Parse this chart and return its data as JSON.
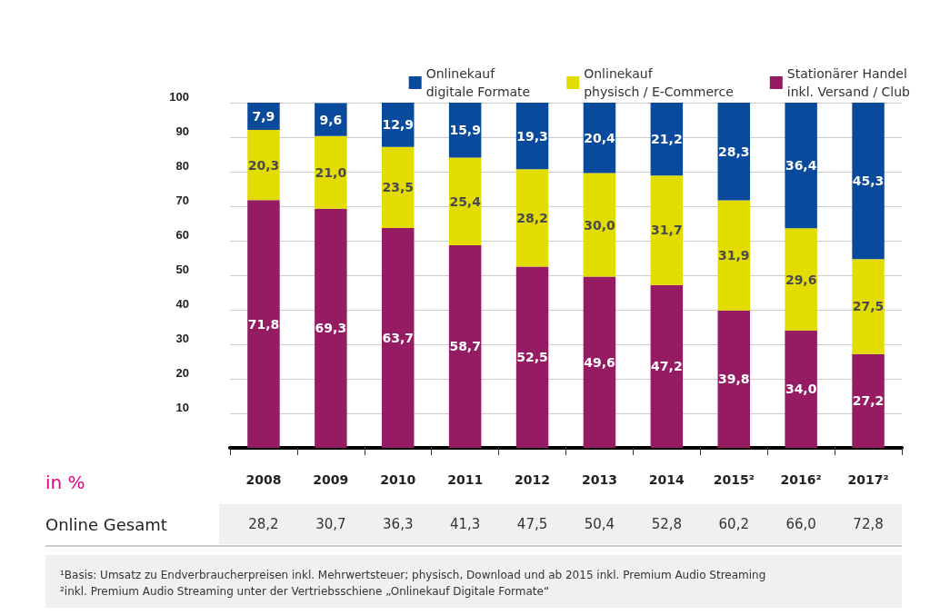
{
  "chart_data": {
    "type": "bar",
    "stacked": true,
    "ylabel": "in %",
    "categories": [
      "2008",
      "2009",
      "2010",
      "2011",
      "2012",
      "2013",
      "2014",
      "2015²",
      "2016²",
      "2017²"
    ],
    "series": [
      {
        "name": "Stationärer Handel\ninkl. Versand / Club",
        "color": "#951b63",
        "values": [
          71.8,
          69.3,
          63.7,
          58.7,
          52.5,
          49.6,
          47.2,
          39.8,
          34.0,
          27.2
        ],
        "value_labels": [
          "71,8",
          "69,3",
          "63,7",
          "58,7",
          "52,5",
          "49,6",
          "47,2",
          "39,8",
          "34,0",
          "27,2"
        ]
      },
      {
        "name": "Onlinekauf\nphysisch / E-Commerce",
        "color": "#e3dc00",
        "values": [
          20.3,
          21.0,
          23.5,
          25.4,
          28.2,
          30.0,
          31.7,
          31.9,
          29.6,
          27.5
        ],
        "value_labels": [
          "20,3",
          "21,0",
          "23,5",
          "25,4",
          "28,2",
          "30,0",
          "31,7",
          "31,9",
          "29,6",
          "27,5"
        ]
      },
      {
        "name": "Onlinekauf\ndigitale Formate",
        "color": "#0a4a9c",
        "values": [
          7.9,
          9.6,
          12.9,
          15.9,
          19.3,
          20.4,
          21.2,
          28.3,
          36.4,
          45.3
        ],
        "value_labels": [
          "7,9",
          "9,6",
          "12,9",
          "15,9",
          "19,3",
          "20,4",
          "21,2",
          "28,3",
          "36,4",
          "45,3"
        ]
      }
    ],
    "ylim": [
      0,
      100
    ],
    "yticks": [
      10,
      20,
      30,
      40,
      50,
      60,
      70,
      80,
      90,
      100
    ],
    "grid": "y",
    "legend": "top right",
    "annotations": [
      "Online Gesamt",
      "28,2",
      "30,7",
      "36,3",
      "41,3",
      "47,5",
      "50,4",
      "52,8",
      "60,2",
      "66,0",
      "72,8",
      "¹Basis: Umsatz zu Endverbraucherpreisen inkl. Mehrwertsteuer; physisch, Download und ab 2015 inkl. Premium Audio Streaming",
      "²inkl. Premium Audio Streaming unter der Vertriebsschiene „Onlinekauf Digitale Formate“"
    ]
  }
}
